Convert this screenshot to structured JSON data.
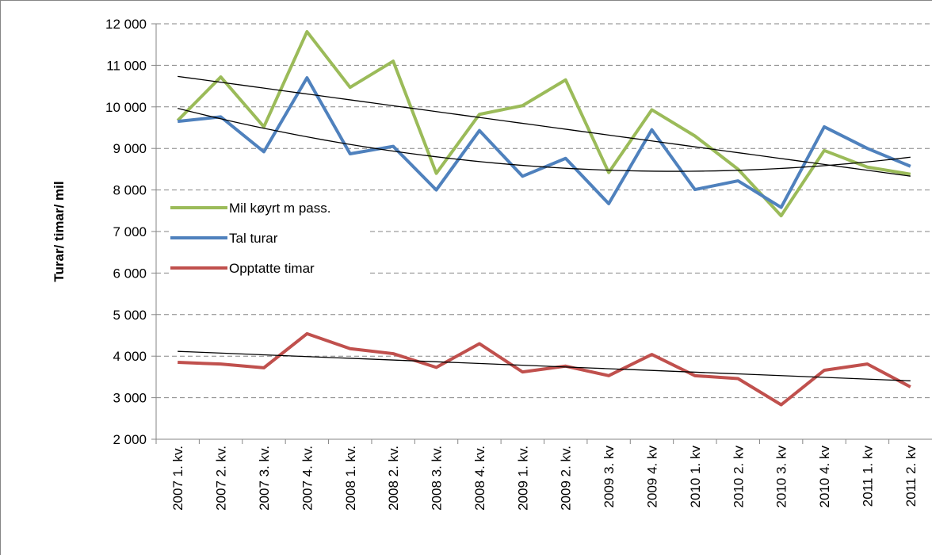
{
  "chart_data": {
    "type": "line",
    "y_label": "Turar/ timar/ mil",
    "categories": [
      "2007 1. kv.",
      "2007 2. kv.",
      "2007 3. kv.",
      "2007 4. kv.",
      "2008 1. kv.",
      "2008 2. kv.",
      "2008 3. kv.",
      "2008 4. kv.",
      "2009 1. kv.",
      "2009 2. kv.",
      "2009 3. kv",
      "2009 4. kv",
      "2010 1. kv",
      "2010 2. kv",
      "2010 3. kv",
      "2010 4. kv",
      "2011 1. kv",
      "2011 2. kv"
    ],
    "series": [
      {
        "name": "Mil køyrt m pass.",
        "color": "#9bbb59",
        "trendline": "linear",
        "values": [
          9670,
          10720,
          9520,
          11810,
          10470,
          11100,
          8400,
          9820,
          10030,
          10650,
          8420,
          9930,
          9300,
          8500,
          7380,
          8950,
          8550,
          8380
        ]
      },
      {
        "name": "Tal turar",
        "color": "#4f81bd",
        "trendline": "quadratic",
        "values": [
          9650,
          9760,
          8920,
          10700,
          8870,
          9050,
          8000,
          9430,
          8330,
          8760,
          7670,
          9450,
          8010,
          8220,
          7580,
          9520,
          9000,
          8570
        ]
      },
      {
        "name": "Opptatte timar",
        "color": "#c0504d",
        "trendline": "linear",
        "values": [
          3850,
          3810,
          3720,
          4540,
          4180,
          4060,
          3730,
          4300,
          3620,
          3760,
          3530,
          4040,
          3530,
          3460,
          2830,
          3660,
          3810,
          3260
        ]
      }
    ],
    "ylim": [
      2000,
      12000
    ],
    "yticks": [
      {
        "value": 2000,
        "label": "2 000"
      },
      {
        "value": 3000,
        "label": "3 000"
      },
      {
        "value": 4000,
        "label": "4 000"
      },
      {
        "value": 5000,
        "label": "5 000"
      },
      {
        "value": 6000,
        "label": "6 000"
      },
      {
        "value": 7000,
        "label": "7 000"
      },
      {
        "value": 8000,
        "label": "8 000"
      },
      {
        "value": 9000,
        "label": "9 000"
      },
      {
        "value": 10000,
        "label": "10 000"
      },
      {
        "value": 11000,
        "label": "11 000"
      },
      {
        "value": 12000,
        "label": "12 000"
      }
    ],
    "grid": true,
    "legend": "left"
  }
}
